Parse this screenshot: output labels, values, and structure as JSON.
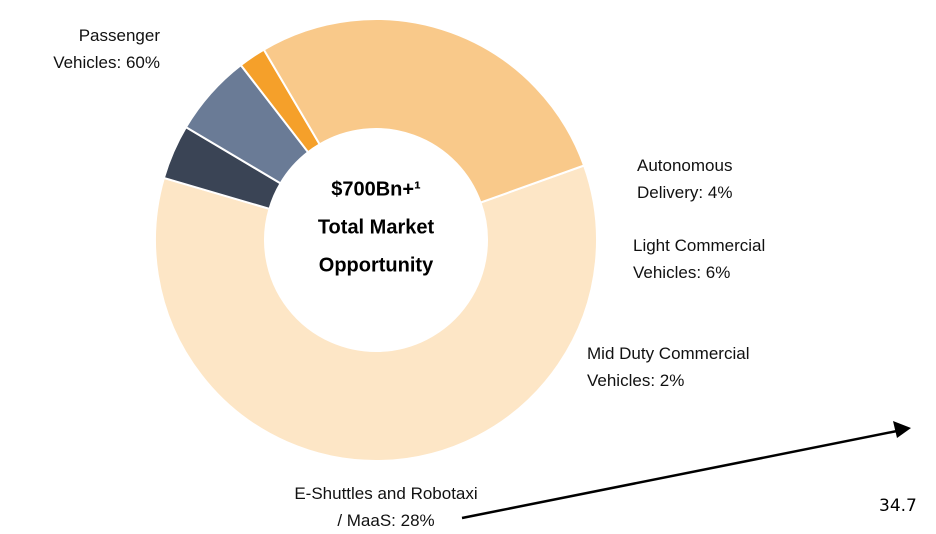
{
  "chart_data": {
    "type": "donut",
    "center_label": [
      "$700Bn+¹",
      "Total Market",
      "Opportunity"
    ],
    "categories": [
      "Passenger Vehicles:",
      "Autonomous Delivery:",
      "Light Commercial Vehicles:",
      "Mid Duty Commercial Vehicles:",
      "E-Shuttles and Robotaxi / MaaS:"
    ],
    "values": [
      60,
      4,
      6,
      2,
      28
    ],
    "value_labels": [
      "60%",
      "4%",
      "6%",
      "2%",
      "28%"
    ],
    "colors": [
      "#fde6c6",
      "#3a4455",
      "#6a7b96",
      "#f5a02a",
      "#f9c98a"
    ],
    "annotation": "34.7"
  }
}
